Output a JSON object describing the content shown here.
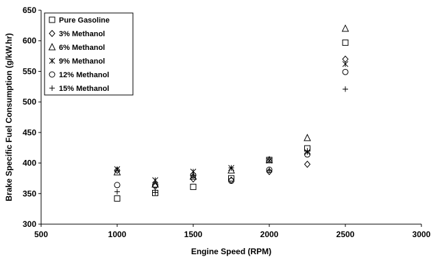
{
  "chart_data": {
    "type": "scatter",
    "xlabel": "Engine Speed (RPM)",
    "ylabel": "Brake Specific Fuel Consumption (g/kW.hr)",
    "xlim": [
      500,
      3000
    ],
    "ylim": [
      300,
      650
    ],
    "xticks": [
      500,
      1000,
      1500,
      2000,
      2500,
      3000
    ],
    "yticks": [
      300,
      350,
      400,
      450,
      500,
      550,
      600,
      650
    ],
    "grid": false,
    "legend_position": "top-left",
    "x": [
      1000,
      1250,
      1500,
      1750,
      2000,
      2250,
      2500
    ],
    "series": [
      {
        "name": "Pure Gasoline",
        "marker": "square",
        "values": [
          342,
          351,
          361,
          375,
          405,
          424,
          597
        ]
      },
      {
        "name": "3% Methanol",
        "marker": "diamond",
        "values": [
          388,
          362,
          374,
          372,
          386,
          398,
          570
        ]
      },
      {
        "name": "6% Methanol",
        "marker": "triangle",
        "values": [
          385,
          365,
          378,
          388,
          405,
          441,
          620
        ]
      },
      {
        "name": "9% Methanol",
        "marker": "asterisk",
        "values": [
          390,
          372,
          386,
          392,
          404,
          418,
          562
        ]
      },
      {
        "name": "12% Methanol",
        "marker": "circle",
        "values": [
          364,
          364,
          380,
          371,
          389,
          414,
          549
        ]
      },
      {
        "name": "15% Methanol",
        "marker": "plus",
        "values": [
          353,
          352,
          380,
          392,
          388,
          420,
          521
        ]
      }
    ]
  }
}
